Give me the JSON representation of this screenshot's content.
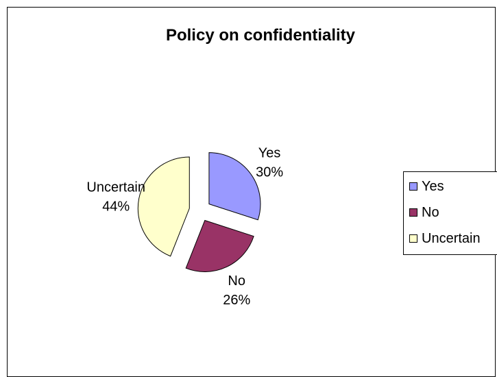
{
  "chart_data": {
    "type": "pie",
    "title": "Policy on confidentiality",
    "categories": [
      "Yes",
      "No",
      "Uncertain"
    ],
    "values": [
      30,
      26,
      44
    ],
    "labels": [
      "30%",
      "26%",
      "44%"
    ],
    "colors": [
      "#9999ff",
      "#993366",
      "#ffffcc"
    ],
    "exploded": true,
    "legend": {
      "position": "right",
      "entries": [
        "Yes",
        "No",
        "Uncertain"
      ]
    }
  }
}
